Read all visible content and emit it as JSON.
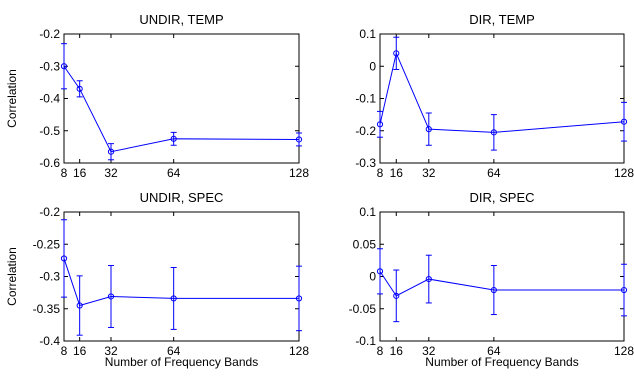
{
  "chart_data": [
    {
      "type": "line",
      "title": "UNDIR, TEMP",
      "xlabel": "",
      "ylabel": "Correlation",
      "x": [
        8,
        16,
        32,
        64,
        128
      ],
      "xticks": [
        "8",
        "16",
        "32",
        "64",
        "128"
      ],
      "xlim": [
        8,
        128
      ],
      "ylim": [
        -0.6,
        -0.2
      ],
      "yticks": [
        "-0.6",
        "-0.5",
        "-0.4",
        "-0.3",
        "-0.2"
      ],
      "ytick_values": [
        -0.6,
        -0.5,
        -0.4,
        -0.3,
        -0.2
      ],
      "series": [
        {
          "values": [
            -0.3,
            -0.37,
            -0.565,
            -0.525,
            -0.527
          ],
          "errors": [
            0.07,
            0.025,
            0.025,
            0.02,
            0.02
          ]
        }
      ],
      "grid": false,
      "color": "#0000ff"
    },
    {
      "type": "line",
      "title": "DIR, TEMP",
      "xlabel": "",
      "ylabel": "",
      "x": [
        8,
        16,
        32,
        64,
        128
      ],
      "xticks": [
        "8",
        "16",
        "32",
        "64",
        "128"
      ],
      "xlim": [
        8,
        128
      ],
      "ylim": [
        -0.3,
        0.1
      ],
      "yticks": [
        "-0.3",
        "-0.2",
        "-0.1",
        "0",
        "0.1"
      ],
      "ytick_values": [
        -0.3,
        -0.2,
        -0.1,
        0,
        0.1
      ],
      "series": [
        {
          "values": [
            -0.18,
            0.04,
            -0.195,
            -0.205,
            -0.172
          ],
          "errors": [
            0.04,
            0.05,
            0.05,
            0.055,
            0.06
          ]
        }
      ],
      "grid": false,
      "color": "#0000ff"
    },
    {
      "type": "line",
      "title": "UNDIR, SPEC",
      "xlabel": "Number of Frequency Bands",
      "ylabel": "Correlation",
      "x": [
        8,
        16,
        32,
        64,
        128
      ],
      "xticks": [
        "8",
        "16",
        "32",
        "64",
        "128"
      ],
      "xlim": [
        8,
        128
      ],
      "ylim": [
        -0.4,
        -0.2
      ],
      "yticks": [
        "-0.4",
        "-0.35",
        "-0.3",
        "-0.25",
        "-0.2"
      ],
      "ytick_values": [
        -0.4,
        -0.35,
        -0.3,
        -0.25,
        -0.2
      ],
      "series": [
        {
          "values": [
            -0.272,
            -0.345,
            -0.331,
            -0.334,
            -0.334
          ],
          "errors": [
            0.06,
            0.046,
            0.048,
            0.048,
            0.05
          ]
        }
      ],
      "grid": false,
      "color": "#0000ff"
    },
    {
      "type": "line",
      "title": "DIR, SPEC",
      "xlabel": "Number of Frequency Bands",
      "ylabel": "",
      "x": [
        8,
        16,
        32,
        64,
        128
      ],
      "xticks": [
        "8",
        "16",
        "32",
        "64",
        "128"
      ],
      "xlim": [
        8,
        128
      ],
      "ylim": [
        -0.1,
        0.1
      ],
      "yticks": [
        "-0.1",
        "-0.05",
        "0",
        "0.05",
        "0.1"
      ],
      "ytick_values": [
        -0.1,
        -0.05,
        0,
        0.05,
        0.1
      ],
      "series": [
        {
          "values": [
            0.008,
            -0.03,
            -0.004,
            -0.021,
            -0.021
          ],
          "errors": [
            0.035,
            0.04,
            0.037,
            0.038,
            0.04
          ]
        }
      ],
      "grid": false,
      "color": "#0000ff"
    }
  ]
}
